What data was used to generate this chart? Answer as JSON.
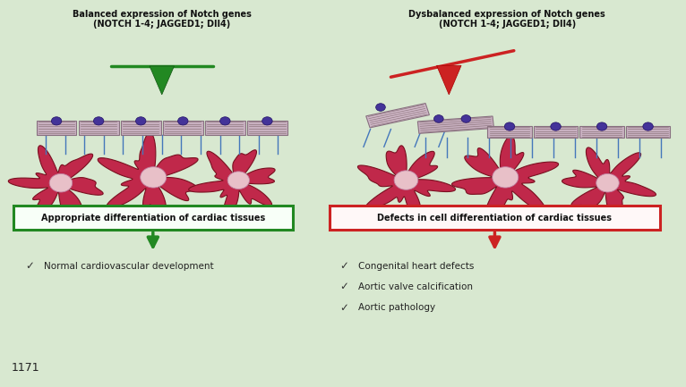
{
  "bg_color": "#d8e8d0",
  "title_left": "Balanced expression of Notch genes\n(NOTCH 1-4; JAGGED1; Dll4)",
  "title_right": "Dysbalanced expression of Notch genes\n(NOTCH 1-4; JAGGED1; Dll4)",
  "box_left_text": "Appropriate differentiation of cardiac tissues",
  "box_right_text": "Defects in cell differentiation of cardiac tissues",
  "box_left_color": "#228822",
  "box_right_color": "#cc2222",
  "bullet_left": [
    "Normal cardiovascular development"
  ],
  "bullet_right": [
    "Congenital heart defects",
    "Aortic valve calcification",
    "Aortic pathology"
  ],
  "page_number": "1171",
  "cell_color": "#c0284a",
  "cell_nucleus_color": "#e8c0c8",
  "tissue_color": "#c8b0c0",
  "tissue_hatch_color": "#907880",
  "purple_dot_color": "#443399",
  "connector_color": "#4477bb",
  "green_arrow_color": "#228822",
  "red_arrow_color": "#cc2222"
}
